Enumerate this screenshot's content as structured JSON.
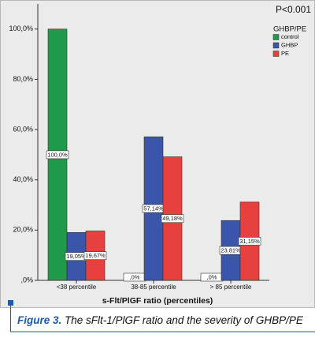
{
  "chart_data": {
    "type": "bar",
    "annotation": "P<0.001",
    "legend_title": "GHBP/PE",
    "x_label": "s-Flt/PlGF ratio (percentiles)",
    "categories": [
      "<38 percentile",
      "38-85 percentile",
      "> 85 percentile"
    ],
    "series": [
      {
        "name": "control",
        "color": "#1f9a4a",
        "values": [
          100,
          0,
          0
        ],
        "value_labels": [
          "100,0%",
          ",0%",
          ",0%"
        ]
      },
      {
        "name": "GHBP",
        "color": "#3b55aa",
        "values": [
          19.05,
          57.14,
          23.81
        ],
        "value_labels": [
          "19,05%",
          "57,14%",
          "23,81%"
        ]
      },
      {
        "name": "PE",
        "color": "#e8403f",
        "values": [
          19.67,
          49.18,
          31.15
        ],
        "value_labels": [
          "19,67%",
          "49,18%",
          "31,15%"
        ]
      }
    ],
    "ylim": [
      0,
      110
    ],
    "yticks": [
      {
        "value": 0,
        "label": ",0%"
      },
      {
        "value": 20,
        "label": "20,0%"
      },
      {
        "value": 40,
        "label": "40,0%"
      },
      {
        "value": 60,
        "label": "60,0%"
      },
      {
        "value": 80,
        "label": "80,0%"
      },
      {
        "value": 100,
        "label": "100,0%"
      }
    ],
    "legend_position": "top-right"
  },
  "caption": {
    "label": "Figure 3.",
    "text": "The sFlt-1/PlGF ratio and the severity of GHBP/PE"
  }
}
